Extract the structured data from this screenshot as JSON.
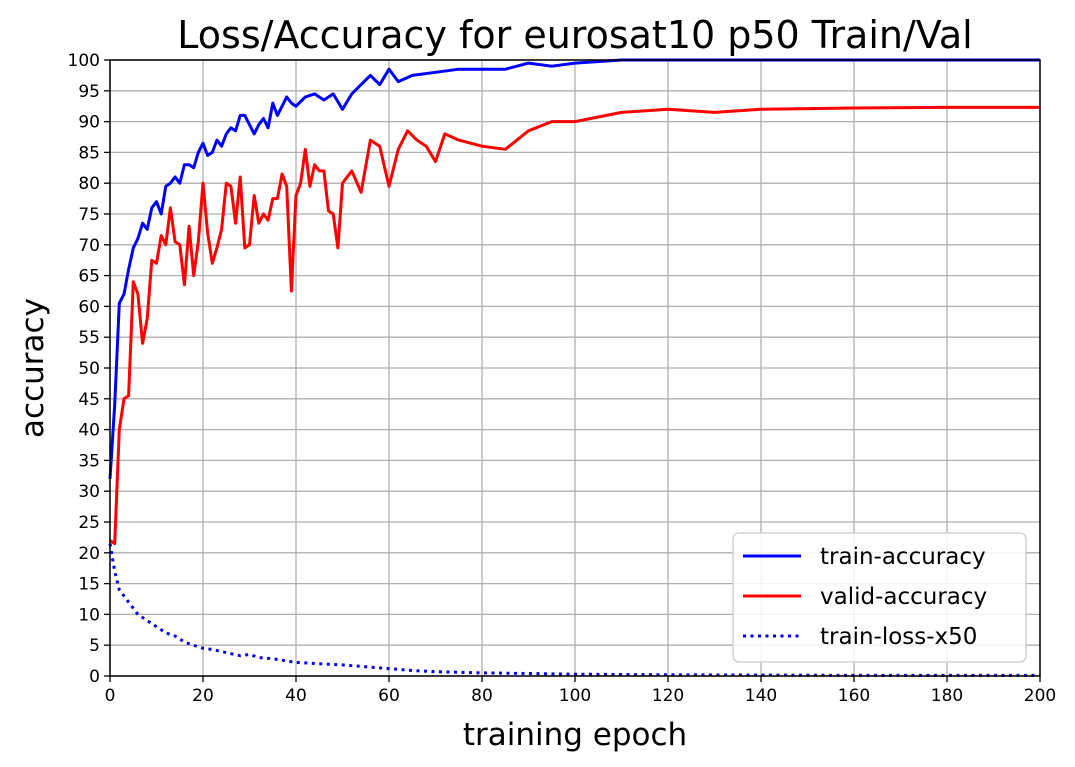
{
  "chart_data": {
    "type": "line",
    "title": "Loss/Accuracy for eurosat10 p50 Train/Val",
    "xlabel": "training epoch",
    "ylabel": "accuracy",
    "xlim": [
      0,
      200
    ],
    "ylim": [
      0,
      100
    ],
    "xticks": [
      0,
      20,
      40,
      60,
      80,
      100,
      120,
      140,
      160,
      180,
      200
    ],
    "yticks": [
      0,
      5,
      10,
      15,
      20,
      25,
      30,
      35,
      40,
      45,
      50,
      55,
      60,
      65,
      70,
      75,
      80,
      85,
      90,
      95,
      100
    ],
    "grid": true,
    "legend_position": "lower-right",
    "series": [
      {
        "name": "train-accuracy",
        "color": "#0000ff",
        "style": "solid",
        "x": [
          0,
          1,
          2,
          3,
          4,
          5,
          6,
          7,
          8,
          9,
          10,
          11,
          12,
          13,
          14,
          15,
          16,
          17,
          18,
          19,
          20,
          21,
          22,
          23,
          24,
          25,
          26,
          27,
          28,
          29,
          30,
          31,
          32,
          33,
          34,
          35,
          36,
          37,
          38,
          39,
          40,
          42,
          44,
          46,
          48,
          50,
          52,
          54,
          56,
          58,
          60,
          62,
          65,
          70,
          75,
          80,
          85,
          90,
          95,
          100,
          110,
          120,
          140,
          160,
          180,
          200
        ],
        "y": [
          32,
          44,
          60.5,
          62,
          66,
          69.5,
          71,
          73.5,
          72.5,
          76,
          77,
          75,
          79.5,
          80,
          81,
          80,
          83,
          83,
          82.5,
          85,
          86.5,
          84.5,
          85,
          87,
          86,
          88,
          89,
          88.5,
          91,
          91,
          89.5,
          88,
          89.5,
          90.5,
          89,
          93,
          91,
          92.5,
          94,
          93,
          92.5,
          94,
          94.5,
          93.5,
          94.5,
          92,
          94.5,
          96,
          97.5,
          96,
          98.5,
          96.5,
          97.5,
          98,
          98.5,
          98.5,
          98.5,
          99.5,
          99,
          99.5,
          100,
          100,
          100,
          100,
          100,
          100
        ]
      },
      {
        "name": "valid-accuracy",
        "color": "#ff0000",
        "style": "solid",
        "x": [
          0,
          1,
          2,
          3,
          4,
          5,
          6,
          7,
          8,
          9,
          10,
          11,
          12,
          13,
          14,
          15,
          16,
          17,
          18,
          19,
          20,
          21,
          22,
          23,
          24,
          25,
          26,
          27,
          28,
          29,
          30,
          31,
          32,
          33,
          34,
          35,
          36,
          37,
          38,
          39,
          40,
          41,
          42,
          43,
          44,
          45,
          46,
          47,
          48,
          49,
          50,
          52,
          54,
          56,
          58,
          60,
          62,
          64,
          66,
          68,
          70,
          72,
          75,
          80,
          85,
          90,
          95,
          100,
          110,
          120,
          130,
          140,
          160,
          180,
          200
        ],
        "y": [
          22,
          21.5,
          40,
          45,
          45.5,
          64,
          62,
          54,
          58,
          67.5,
          67,
          71.5,
          70,
          76,
          70.5,
          70,
          63.5,
          73,
          65,
          70.5,
          80,
          72,
          67,
          69.5,
          72.5,
          80,
          79.5,
          73.5,
          81,
          69.5,
          70,
          78,
          73.5,
          75,
          74,
          77.5,
          77.5,
          81.5,
          79.5,
          62.5,
          78,
          80,
          85.5,
          79.5,
          83,
          82,
          82,
          75.5,
          75,
          69.5,
          80,
          82,
          78.5,
          87,
          86,
          79.5,
          85.5,
          88.5,
          87,
          86,
          83.5,
          88,
          87,
          86,
          85.5,
          88.5,
          90,
          90,
          91.5,
          92,
          91.5,
          92,
          92.2,
          92.3,
          92.3
        ]
      },
      {
        "name": "train-loss-x50",
        "color": "#0000ff",
        "style": "dotted",
        "x": [
          0,
          1,
          2,
          4,
          6,
          8,
          10,
          12,
          14,
          16,
          18,
          20,
          22,
          25,
          28,
          30,
          32,
          35,
          40,
          45,
          50,
          55,
          60,
          65,
          70,
          80,
          90,
          100,
          120,
          140,
          160,
          180,
          200
        ],
        "y": [
          21.5,
          17,
          14,
          12,
          10,
          9,
          8,
          7,
          6.5,
          5.5,
          5,
          4.5,
          4.3,
          3.8,
          3.3,
          3.5,
          3,
          2.8,
          2.2,
          2,
          1.8,
          1.5,
          1.2,
          0.9,
          0.7,
          0.5,
          0.4,
          0.3,
          0.2,
          0.15,
          0.1,
          0.1,
          0.1
        ]
      }
    ]
  }
}
